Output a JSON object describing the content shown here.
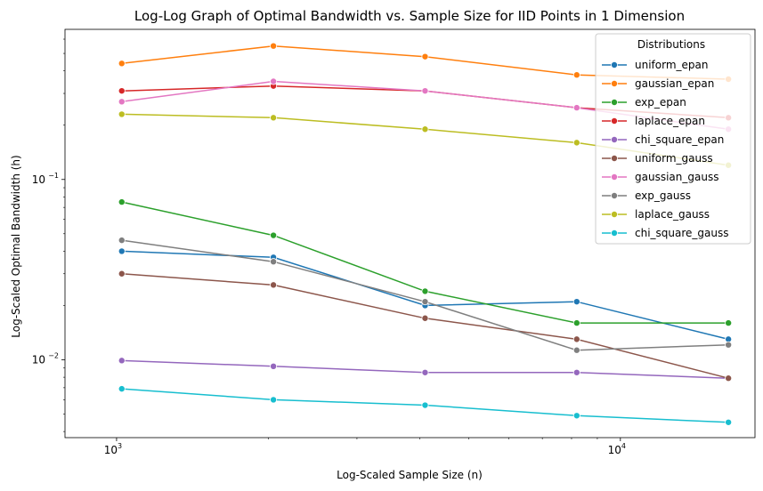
{
  "chart_data": {
    "type": "line",
    "title": "Log-Log Graph of Optimal Bandwidth vs. Sample Size for IID Points in 1 Dimension",
    "xlabel": "Log-Scaled Sample Size (n)",
    "ylabel": "Log-Scaled Optimal Bandwidth (h)",
    "x_scale": "log",
    "y_scale": "log",
    "xlim": [
      790,
      18500
    ],
    "ylim": [
      0.0037,
      0.68
    ],
    "x_ticks": [
      {
        "value": 1000,
        "base": "10",
        "exp": "3"
      },
      {
        "value": 10000,
        "base": "10",
        "exp": "4"
      }
    ],
    "y_ticks": [
      {
        "value": 0.01,
        "base": "10",
        "exp": "−2"
      },
      {
        "value": 0.1,
        "base": "10",
        "exp": "−1"
      }
    ],
    "x": [
      1024,
      2048,
      4096,
      8192,
      16384
    ],
    "legend": {
      "title": "Distributions",
      "placement": "top-right"
    },
    "series": [
      {
        "name": "uniform_epan",
        "color": "#1f77b4",
        "values": [
          0.04,
          0.037,
          0.02,
          0.021,
          0.013
        ]
      },
      {
        "name": "gaussian_epan",
        "color": "#ff7f0e",
        "values": [
          0.44,
          0.55,
          0.48,
          0.38,
          0.36
        ]
      },
      {
        "name": "exp_epan",
        "color": "#2ca02c",
        "values": [
          0.075,
          0.049,
          0.024,
          0.016,
          0.016
        ]
      },
      {
        "name": "laplace_epan",
        "color": "#d62728",
        "values": [
          0.31,
          0.33,
          0.31,
          0.25,
          0.22
        ]
      },
      {
        "name": "chi_square_epan",
        "color": "#9467bd",
        "values": [
          0.0099,
          0.0092,
          0.0085,
          0.0085,
          0.0079
        ]
      },
      {
        "name": "uniform_gauss",
        "color": "#8c564b",
        "values": [
          0.03,
          0.026,
          0.017,
          0.013,
          0.0079
        ]
      },
      {
        "name": "gaussian_gauss",
        "color": "#e377c2",
        "values": [
          0.27,
          0.35,
          0.31,
          0.25,
          0.19
        ]
      },
      {
        "name": "exp_gauss",
        "color": "#7f7f7f",
        "values": [
          0.046,
          0.035,
          0.021,
          0.0113,
          0.0121
        ]
      },
      {
        "name": "laplace_gauss",
        "color": "#bcbd22",
        "values": [
          0.23,
          0.22,
          0.19,
          0.16,
          0.12
        ]
      },
      {
        "name": "chi_square_gauss",
        "color": "#17becf",
        "values": [
          0.0069,
          0.006,
          0.0056,
          0.0049,
          0.0045
        ]
      }
    ]
  }
}
